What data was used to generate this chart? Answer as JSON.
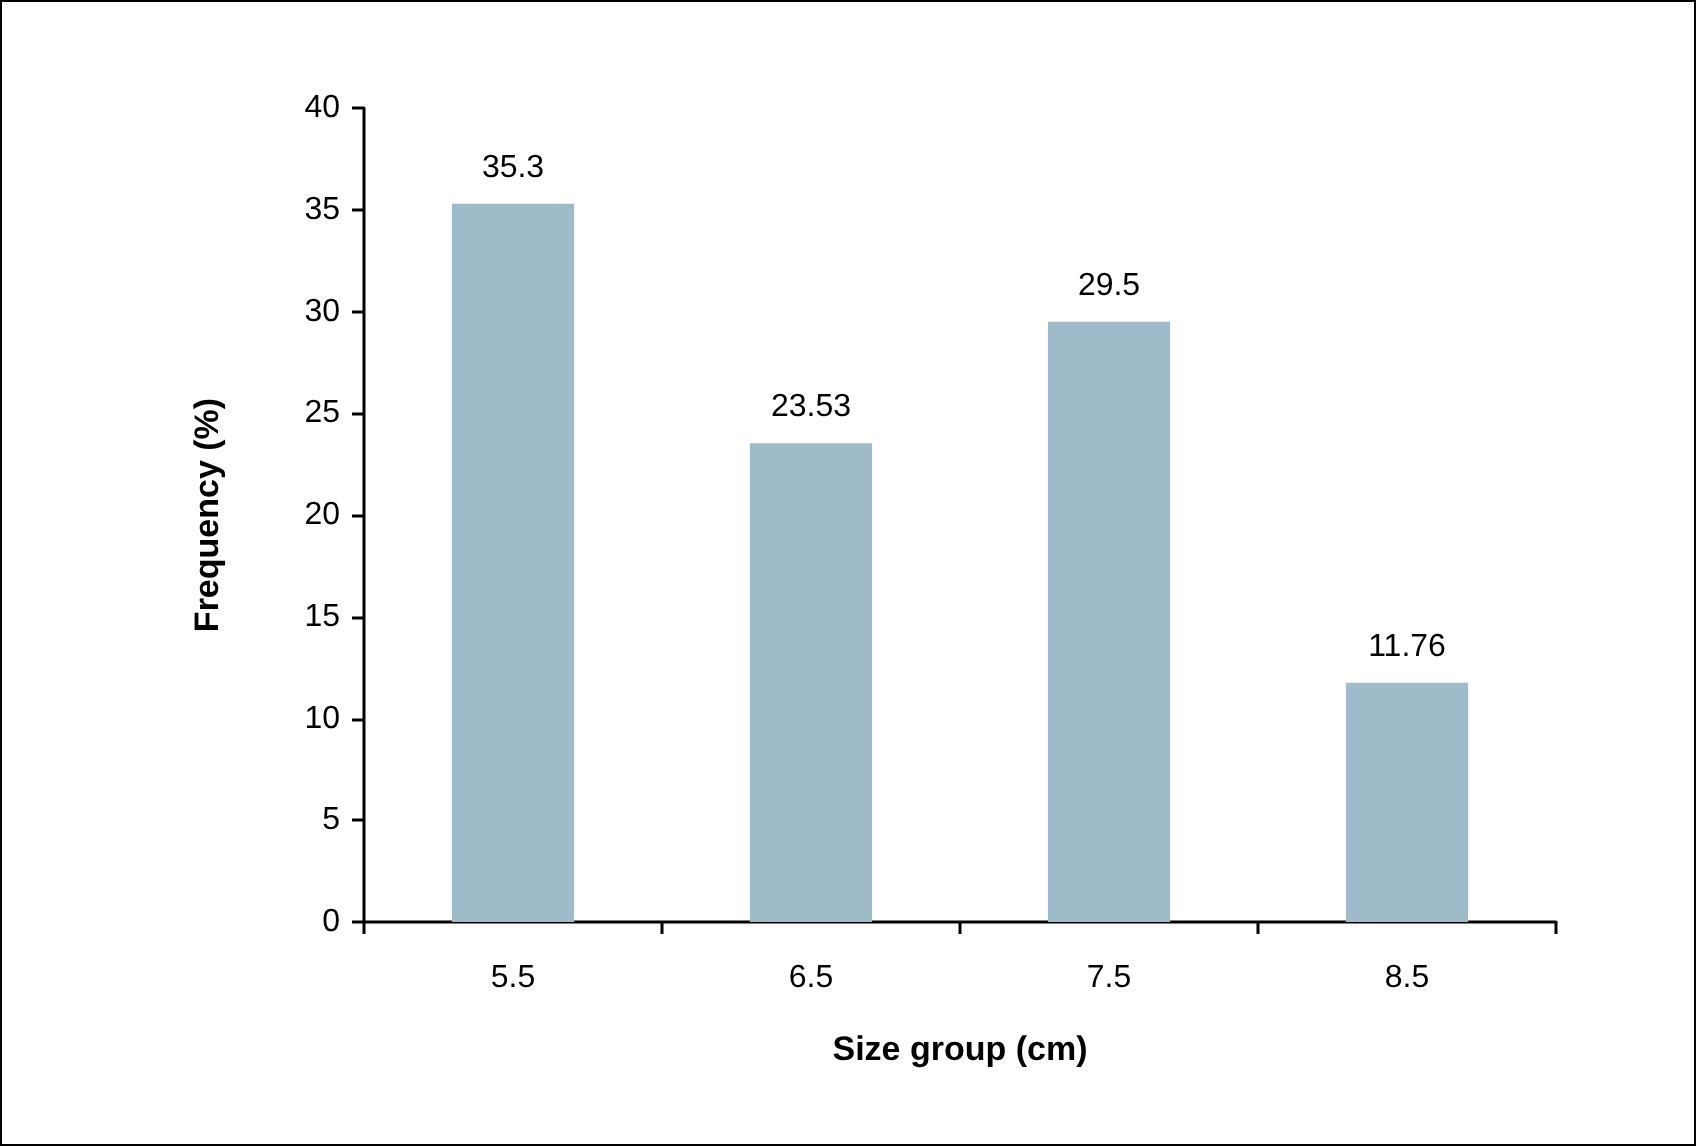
{
  "chart_data": {
    "type": "bar",
    "xlabel": "Size group (cm)",
    "ylabel": "Frequency (%)",
    "categories": [
      "5.5",
      "6.5",
      "7.5",
      "8.5"
    ],
    "values": [
      35.3,
      23.53,
      29.5,
      11.76
    ],
    "color": "#9dbbc8",
    "ylim": [
      0,
      40
    ],
    "yticks": [
      0,
      5,
      10,
      15,
      20,
      25,
      30,
      35,
      40
    ],
    "data_labels": true,
    "grid": false
  }
}
